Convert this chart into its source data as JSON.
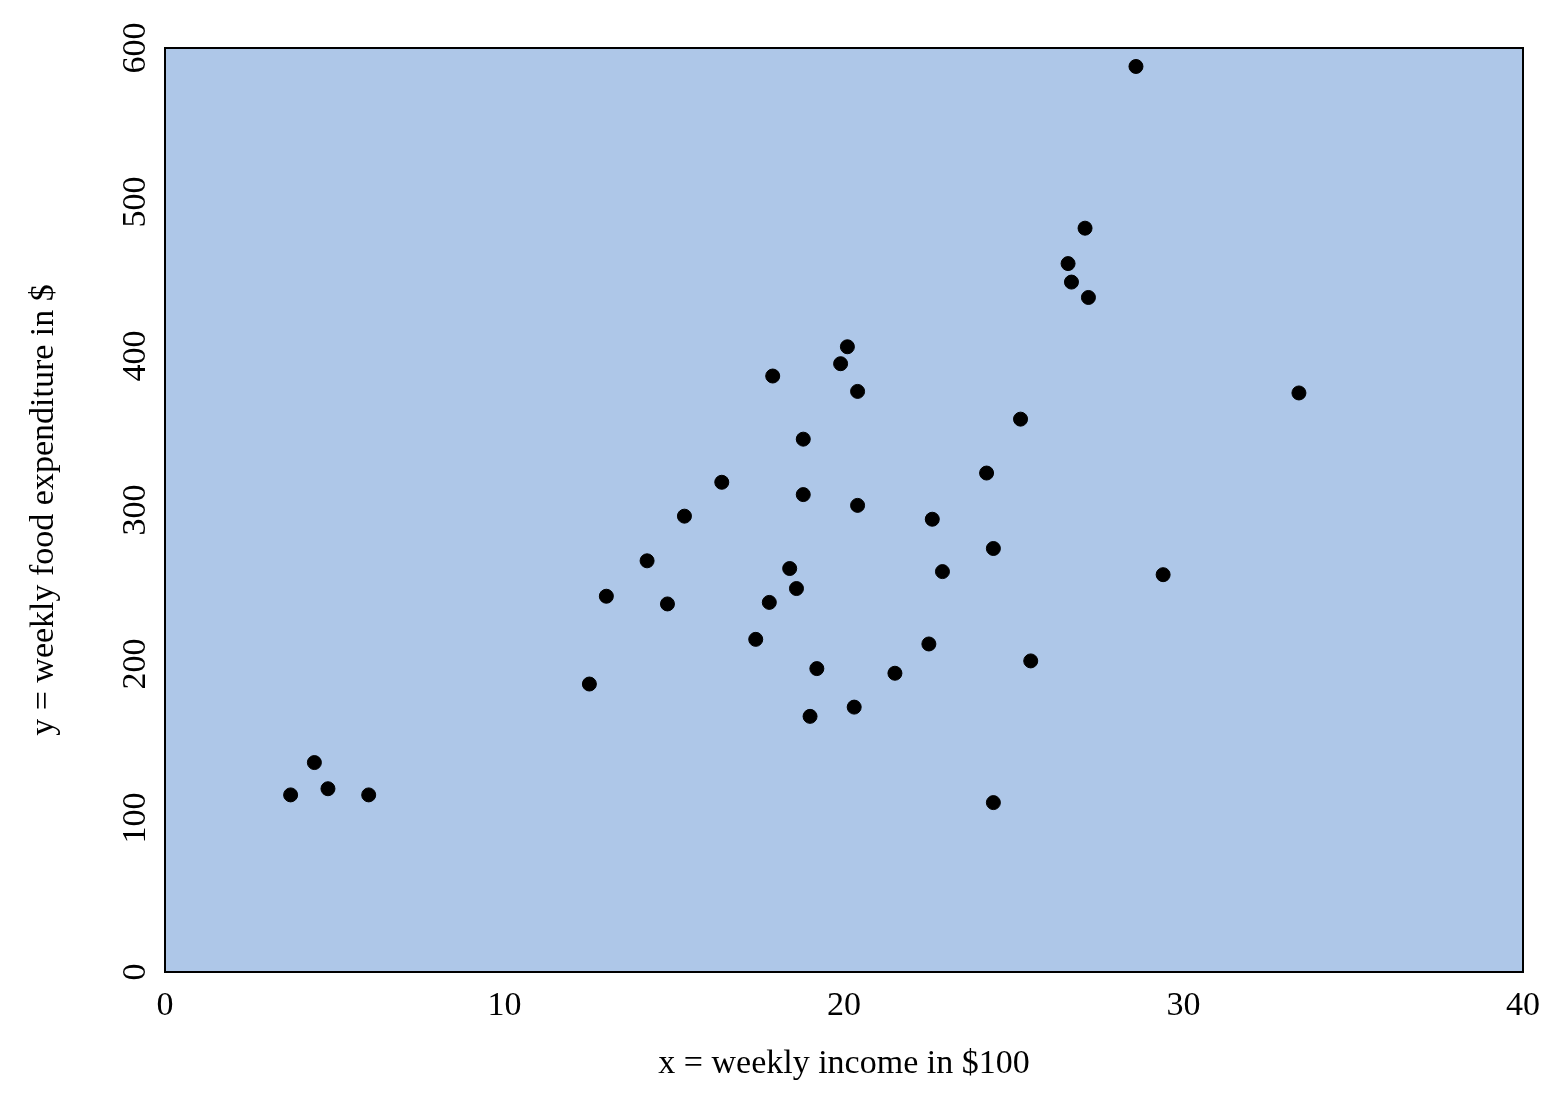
{
  "chart_data": {
    "type": "scatter",
    "xlabel": "x = weekly income in $100",
    "ylabel": "y = weekly food expenditure in $",
    "x": [
      3.7,
      4.4,
      4.8,
      6.0,
      12.5,
      13.0,
      14.2,
      14.8,
      15.3,
      16.4,
      17.4,
      17.8,
      17.9,
      18.4,
      18.6,
      18.8,
      18.8,
      19.0,
      19.2,
      19.9,
      20.1,
      20.3,
      20.4,
      20.4,
      21.5,
      22.5,
      22.6,
      22.9,
      24.2,
      24.4,
      24.4,
      25.2,
      25.5,
      26.6,
      26.7,
      27.1,
      27.2,
      28.6,
      29.4,
      33.4
    ],
    "values": [
      115,
      136,
      119,
      115,
      187,
      244,
      267,
      239,
      296,
      318,
      216,
      240,
      387,
      262,
      249,
      310,
      346,
      166,
      197,
      395,
      406,
      172,
      303,
      377,
      194,
      213,
      294,
      260,
      324,
      275,
      110,
      359,
      202,
      460,
      448,
      483,
      438,
      588,
      258,
      376
    ],
    "color": "#000000",
    "marker": "circle",
    "grid": false,
    "xlim": [
      0,
      40
    ],
    "xticks": [
      0,
      10,
      20,
      30,
      40
    ],
    "ylim": [
      0,
      600
    ],
    "yticks": [
      0,
      100,
      200,
      300,
      400,
      500,
      600
    ]
  }
}
